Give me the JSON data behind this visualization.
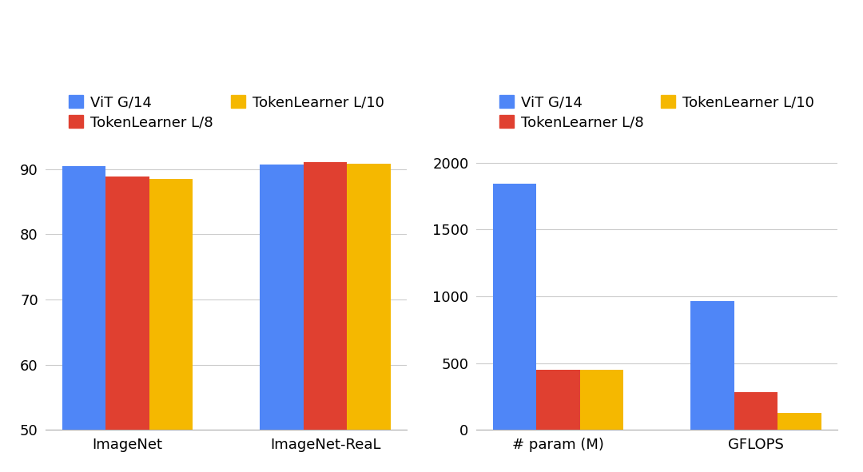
{
  "left_chart": {
    "categories": [
      "ImageNet",
      "ImageNet-ReaL"
    ],
    "series": [
      {
        "label": "ViT G/14",
        "color": "#4f86f7",
        "values": [
          90.45,
          90.7
        ]
      },
      {
        "label": "TokenLearner L/8",
        "color": "#e04030",
        "values": [
          88.8,
          91.05
        ]
      },
      {
        "label": "TokenLearner L/10",
        "color": "#f5b800",
        "values": [
          88.5,
          90.8
        ]
      }
    ],
    "ylim": [
      50,
      93
    ],
    "yticks": [
      50,
      60,
      70,
      80,
      90
    ]
  },
  "right_chart": {
    "categories": [
      "# param (M)",
      "GFLOPS"
    ],
    "series": [
      {
        "label": "ViT G/14",
        "color": "#4f86f7",
        "values": [
          1843,
          963
        ]
      },
      {
        "label": "TokenLearner L/8",
        "color": "#e04030",
        "values": [
          448,
          285
        ]
      },
      {
        "label": "TokenLearner L/10",
        "color": "#f5b800",
        "values": [
          449,
          125
        ]
      }
    ],
    "ylim": [
      0,
      2100
    ],
    "yticks": [
      0,
      500,
      1000,
      1500,
      2000
    ]
  },
  "bar_width": 0.22,
  "bar_gap": 0.0,
  "background_color": "#ffffff",
  "plot_bg_color": "#ffffff",
  "grid_color": "#cccccc",
  "font_size": 13,
  "legend_font_size": 13,
  "tick_font_size": 13,
  "xlabel_font_size": 13,
  "legend_items_row1": 2,
  "fig_width": 10.8,
  "fig_height": 5.91
}
